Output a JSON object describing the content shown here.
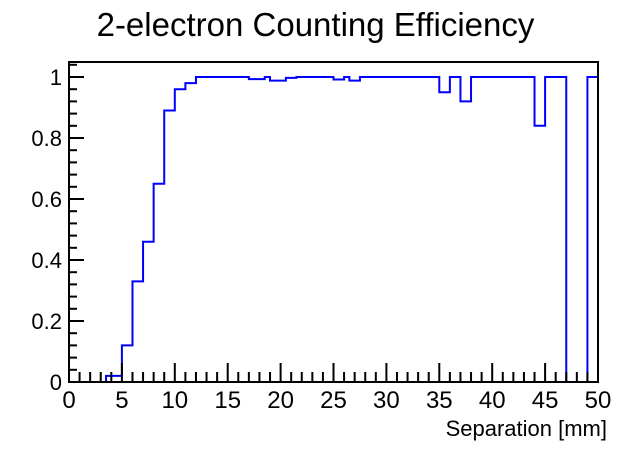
{
  "chart_data": {
    "type": "step-histogram",
    "title": "2-electron Counting Efficiency",
    "xlabel": "Separation [mm]",
    "ylabel": "",
    "xlim": [
      0,
      50
    ],
    "ylim": [
      0,
      1.05
    ],
    "grid": false,
    "legend": false,
    "line_color": "#0000ff",
    "axis_color": "#000000",
    "background_color": "#ffffff",
    "x_ticks": [
      0,
      5,
      10,
      15,
      20,
      25,
      30,
      35,
      40,
      45,
      50
    ],
    "x_tick_labels": [
      "0",
      "5",
      "10",
      "15",
      "20",
      "25",
      "30",
      "35",
      "40",
      "45",
      "50"
    ],
    "x_minor_step": 1,
    "y_ticks": [
      0,
      0.2,
      0.4,
      0.6,
      0.8,
      1
    ],
    "y_tick_labels": [
      "0",
      "0.2",
      "0.4",
      "0.6",
      "0.8",
      "1"
    ],
    "y_minor_step": 0.04,
    "bins": [
      {
        "from": 0,
        "to": 3.5,
        "value": 0
      },
      {
        "from": 3.5,
        "to": 5,
        "value": 0.02
      },
      {
        "from": 5,
        "to": 6,
        "value": 0.12
      },
      {
        "from": 6,
        "to": 7,
        "value": 0.33
      },
      {
        "from": 7,
        "to": 8,
        "value": 0.46
      },
      {
        "from": 8,
        "to": 9,
        "value": 0.65
      },
      {
        "from": 9,
        "to": 10,
        "value": 0.89
      },
      {
        "from": 10,
        "to": 11,
        "value": 0.96
      },
      {
        "from": 11,
        "to": 12,
        "value": 0.98
      },
      {
        "from": 12,
        "to": 17,
        "value": 1.0
      },
      {
        "from": 17,
        "to": 18.5,
        "value": 0.993
      },
      {
        "from": 18.5,
        "to": 19,
        "value": 1.0
      },
      {
        "from": 19,
        "to": 20.5,
        "value": 0.988
      },
      {
        "from": 20.5,
        "to": 21.5,
        "value": 0.997
      },
      {
        "from": 21.5,
        "to": 25,
        "value": 1.0
      },
      {
        "from": 25,
        "to": 26,
        "value": 0.992
      },
      {
        "from": 26,
        "to": 26.5,
        "value": 1.0
      },
      {
        "from": 26.5,
        "to": 27.5,
        "value": 0.988
      },
      {
        "from": 27.5,
        "to": 35,
        "value": 1.0
      },
      {
        "from": 35,
        "to": 36,
        "value": 0.95
      },
      {
        "from": 36,
        "to": 37,
        "value": 1.0
      },
      {
        "from": 37,
        "to": 38,
        "value": 0.92
      },
      {
        "from": 38,
        "to": 44,
        "value": 1.0
      },
      {
        "from": 44,
        "to": 45,
        "value": 0.84
      },
      {
        "from": 45,
        "to": 47,
        "value": 1.0
      },
      {
        "from": 47,
        "to": 49,
        "value": 0
      },
      {
        "from": 49,
        "to": 50,
        "value": 1.0
      }
    ]
  }
}
